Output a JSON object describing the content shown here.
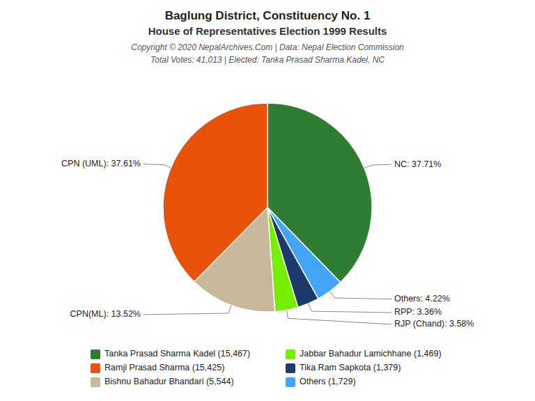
{
  "chart_data": {
    "type": "pie",
    "title": "Baglung District, Constituency No. 1",
    "subtitle": "House of Representatives Election 1999 Results",
    "annotations": [
      "Copyright © 2020 NepalArchives.Com | Data: Nepal Election Commission",
      "Total Votes: 41,013 | Elected: Tanka Prasad Sharma Kadel, NC"
    ],
    "values": [
      37.71,
      4.22,
      3.36,
      3.58,
      13.52,
      37.61
    ],
    "value_labels": [
      "NC: 37.71%",
      "Others: 4.22%",
      "RPP: 3.36%",
      "RJP (Chand): 3.58%",
      "CPN(ML): 13.52%",
      "CPN (UML): 37.61%"
    ],
    "colors": [
      "#2E7D32",
      "#42A5F5",
      "#1C3A6B",
      "#76EE00",
      "#C8B89A",
      "#E8520A"
    ],
    "data_labels": true,
    "legend": "bottom",
    "legend_entries": [
      {
        "name": "Tanka Prasad Sharma Kadel (15,467)",
        "color": "#2E7D32"
      },
      {
        "name": "Ramji Prasad Sharma (15,425)",
        "color": "#E8520A"
      },
      {
        "name": "Bishnu Bahadur Bhandari (5,544)",
        "color": "#C8B89A"
      },
      {
        "name": "Jabbar Bahadur Lamichhane (1,469)",
        "color": "#76EE00"
      },
      {
        "name": "Tika Ram Sapkota (1,379)",
        "color": "#1C3A6B"
      },
      {
        "name": "Others (1,729)",
        "color": "#42A5F5"
      }
    ]
  }
}
